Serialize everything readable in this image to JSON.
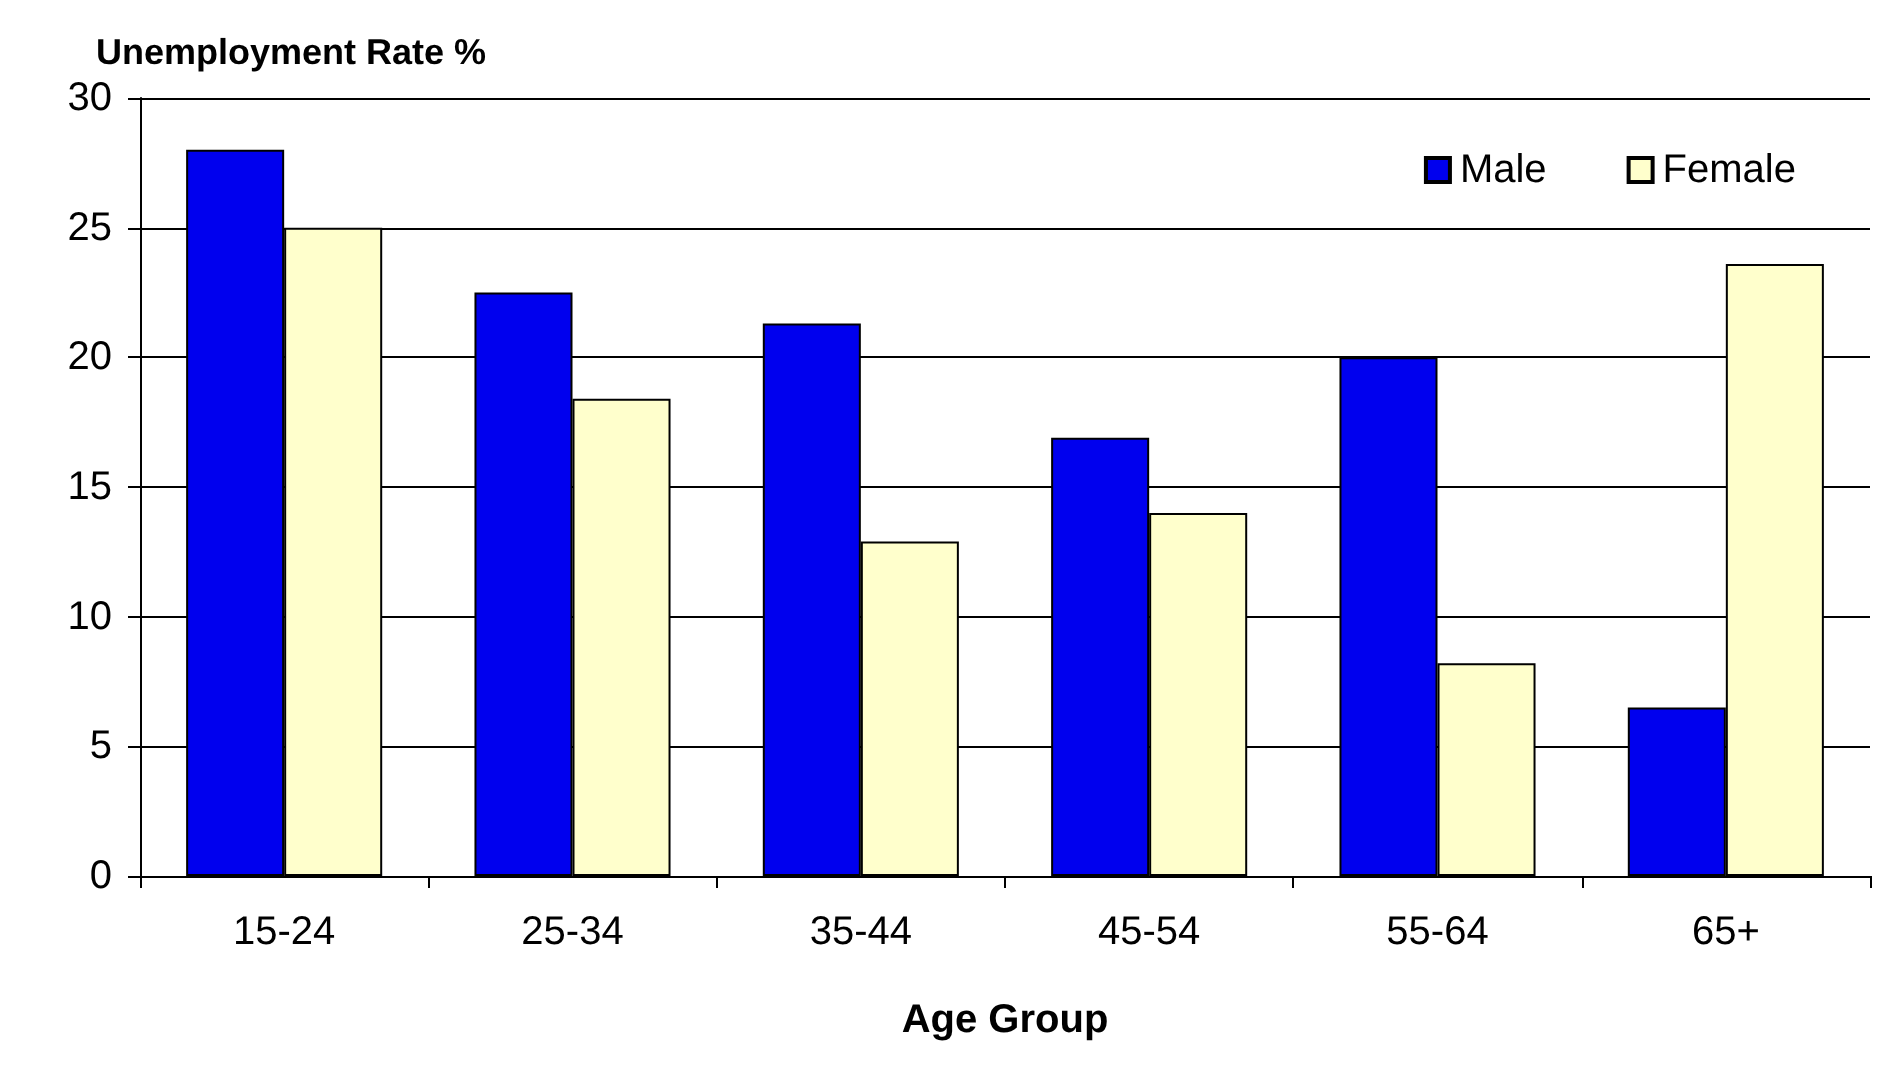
{
  "chart_data": {
    "type": "bar",
    "ylabel": "Unemployment Rate %",
    "xlabel": "Age Group",
    "categories": [
      "15-24",
      "25-34",
      "35-44",
      "45-54",
      "55-64",
      "65+"
    ],
    "series": [
      {
        "name": "Male",
        "color": "#0000ee",
        "values": [
          28,
          22.5,
          21.3,
          16.9,
          20,
          6.5
        ]
      },
      {
        "name": "Female",
        "color": "#ffffcc",
        "values": [
          25,
          18.4,
          12.9,
          14,
          8.2,
          23.6
        ]
      }
    ],
    "ylim": [
      0,
      30
    ],
    "yticks": [
      0,
      5,
      10,
      15,
      20,
      25,
      30
    ],
    "grid": "y",
    "legend": "top right"
  }
}
